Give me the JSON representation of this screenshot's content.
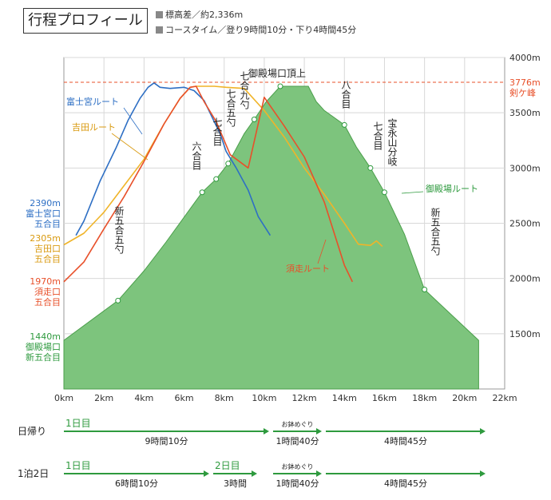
{
  "header": {
    "title": "行程プロフィール",
    "stats": [
      {
        "label": "標高差",
        "value": "約2,336m"
      },
      {
        "label": "コースタイム",
        "value": "登り9時間10分・下り4時間45分"
      }
    ],
    "separator": "／"
  },
  "chart_data": {
    "type": "line",
    "xlabel": "",
    "ylabel": "",
    "xlim": [
      0,
      22
    ],
    "ylim": [
      1000,
      4000
    ],
    "grid": true,
    "x_ticks": [
      "0km",
      "2km",
      "4km",
      "6km",
      "8km",
      "10km",
      "12km",
      "14km",
      "16km",
      "18km",
      "20km",
      "22km"
    ],
    "y_ticks": [
      {
        "value": 1500,
        "label": "1500m"
      },
      {
        "value": 2000,
        "label": "2000m"
      },
      {
        "value": 2500,
        "label": "2500m"
      },
      {
        "value": 3000,
        "label": "3000m"
      },
      {
        "value": 3500,
        "label": "3500m"
      },
      {
        "value": 4000,
        "label": "4000m"
      }
    ],
    "summit": {
      "value": 3776,
      "label": "3776m",
      "name": "剣ケ峰"
    },
    "series": [
      {
        "name": "御殿場ルート",
        "color": "#2e9a3e",
        "x": [
          0,
          2.7,
          4.0,
          5.1,
          6.5,
          6.9,
          7.6,
          8.2,
          9.0,
          9.5,
          10.1,
          10.8,
          12.2,
          12.6,
          13.0,
          14.0,
          14.6,
          15.3,
          16.0,
          17.0,
          18.0,
          20.7
        ],
        "y": [
          1440,
          1800,
          2070,
          2330,
          2680,
          2780,
          2900,
          3040,
          3310,
          3440,
          3600,
          3740,
          3740,
          3600,
          3520,
          3390,
          3190,
          3000,
          2780,
          2400,
          1900,
          1440
        ]
      },
      {
        "name": "富士宮ルート",
        "color": "#2e6fc4",
        "x": [
          0.6,
          1.0,
          1.8,
          2.6,
          3.2,
          3.8,
          4.2,
          4.5,
          4.8,
          5.3,
          6.0,
          6.5,
          7.0,
          7.5,
          7.8,
          8.1,
          8.6,
          9.2,
          9.7,
          10.3
        ],
        "y": [
          2390,
          2520,
          2880,
          3180,
          3430,
          3630,
          3730,
          3770,
          3730,
          3720,
          3730,
          3700,
          3610,
          3420,
          3310,
          3150,
          3000,
          2800,
          2560,
          2390
        ]
      },
      {
        "name": "吉田ルート",
        "color": "#f0b429",
        "x": [
          0,
          1.0,
          2.0,
          3.0,
          4.0,
          5.0,
          5.8,
          6.3,
          6.6,
          7.0,
          7.5,
          8.1,
          9.0,
          10.0,
          11.0,
          12.0,
          13.0,
          14.0,
          14.7,
          15.3,
          15.6,
          15.9
        ],
        "y": [
          2305,
          2410,
          2600,
          2840,
          3080,
          3400,
          3630,
          3730,
          3740,
          3740,
          3740,
          3730,
          3720,
          3520,
          3280,
          3000,
          2760,
          2500,
          2310,
          2300,
          2340,
          2290
        ]
      },
      {
        "name": "須走ルート",
        "color": "#e8502a",
        "x": [
          0,
          1.0,
          2.0,
          3.0,
          4.0,
          5.0,
          5.8,
          6.3,
          6.6,
          7.0,
          7.6,
          8.3,
          9.2,
          10.0,
          11.0,
          12.0,
          13.0,
          14.0,
          14.4
        ],
        "y": [
          1970,
          2150,
          2450,
          2740,
          3060,
          3400,
          3630,
          3730,
          3740,
          3600,
          3420,
          3120,
          3000,
          3640,
          3380,
          3100,
          2690,
          2120,
          1970
        ]
      }
    ],
    "start_labels": [
      {
        "elev": "2390m",
        "lines": [
          "富士宮口",
          "五合目"
        ],
        "color": "#2e6fc4"
      },
      {
        "elev": "2305m",
        "lines": [
          "吉田口",
          "五合目"
        ],
        "color": "#d99a10"
      },
      {
        "elev": "1970m",
        "lines": [
          "須走口",
          "五合目"
        ],
        "color": "#e8502a"
      },
      {
        "elev": "1440m",
        "lines": [
          "御殿場口",
          "新五合目"
        ],
        "color": "#2e9a3e"
      }
    ],
    "stations": [
      {
        "name": "新五合五勺",
        "x": 2.7,
        "y": 1800
      },
      {
        "name": "六合目",
        "x": 6.9,
        "y": 2780
      },
      {
        "name": "七合目",
        "x": 7.6,
        "y": 2900
      },
      {
        "name": "七合五勺",
        "x": 8.2,
        "y": 3040
      },
      {
        "name": "七合九勺",
        "x": 9.5,
        "y": 3440
      },
      {
        "name": "御殿場口頂上",
        "x": 10.8,
        "y": 3740
      },
      {
        "name": "八合目",
        "x": 14.0,
        "y": 3390
      },
      {
        "name": "七合目",
        "x": 15.3,
        "y": 3000
      },
      {
        "name": "宝永山分岐",
        "x": 16.0,
        "y": 2780
      },
      {
        "name": "新五合五勺",
        "x": 18.0,
        "y": 1900
      }
    ],
    "route_labels": [
      "富士宮ルート",
      "吉田ルート",
      "須走ルート",
      "御殿場ルート"
    ]
  },
  "schedules": [
    {
      "label": "日帰り",
      "segments": [
        {
          "day": "1日目",
          "top": "",
          "time": "9時間10分"
        },
        {
          "day": "",
          "top": "お鉢めぐり",
          "time": "1時間40分"
        },
        {
          "day": "",
          "top": "",
          "time": "4時間45分"
        }
      ]
    },
    {
      "label": "1泊2日",
      "segments": [
        {
          "day": "1日目",
          "top": "",
          "time": "6時間10分"
        },
        {
          "day": "2日目",
          "top": "",
          "time": "3時間"
        },
        {
          "day": "",
          "top": "お鉢めぐり",
          "time": "1時間40分"
        },
        {
          "day": "",
          "top": "",
          "time": "4時間45分"
        }
      ]
    }
  ]
}
